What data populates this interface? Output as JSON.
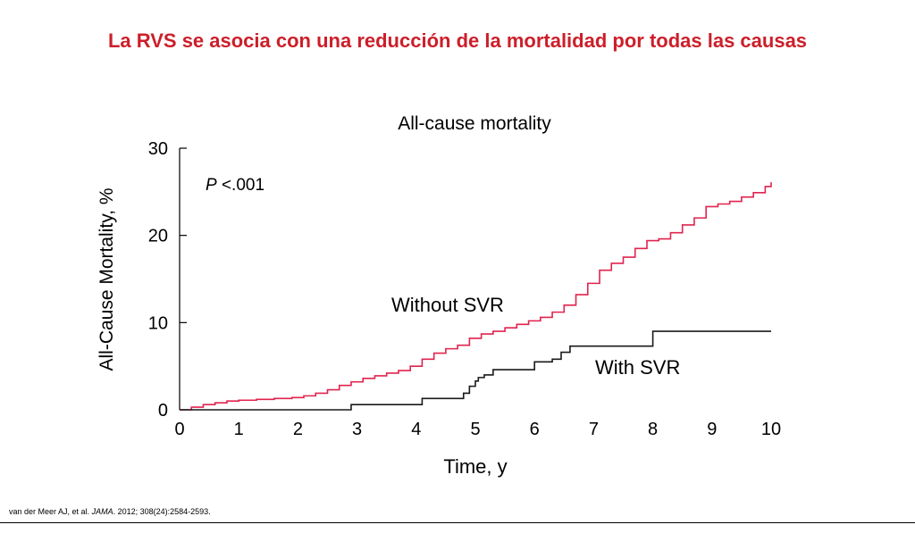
{
  "slide": {
    "title": "La RVS se asocia con una reducción de la mortalidad por todas las causas"
  },
  "citation": {
    "authors": "van der Meer AJ, et al.",
    "journal": "JAMA",
    "details": ". 2012; 308(24):2584-2593."
  },
  "chart_data": {
    "type": "line",
    "title": "All-cause mortality",
    "xlabel": "Time, y",
    "ylabel": "All-Cause Mortality, %",
    "xlim": [
      0,
      10
    ],
    "ylim": [
      0,
      30
    ],
    "xticks": [
      0,
      1,
      2,
      3,
      4,
      5,
      6,
      7,
      8,
      9,
      10
    ],
    "yticks": [
      0,
      10,
      20,
      30
    ],
    "grid": false,
    "step": true,
    "annotations": [
      {
        "text_italic": "P",
        "text": " <.001"
      }
    ],
    "series": [
      {
        "name": "Without SVR",
        "color": "#e0234e",
        "x": [
          0,
          0.2,
          0.4,
          0.6,
          0.8,
          1.0,
          1.3,
          1.6,
          1.9,
          2.1,
          2.3,
          2.5,
          2.7,
          2.9,
          3.1,
          3.3,
          3.5,
          3.7,
          3.9,
          4.1,
          4.3,
          4.5,
          4.7,
          4.9,
          5.1,
          5.3,
          5.5,
          5.7,
          5.9,
          6.1,
          6.3,
          6.5,
          6.7,
          6.9,
          7.1,
          7.3,
          7.5,
          7.7,
          7.9,
          8.1,
          8.3,
          8.5,
          8.7,
          8.9,
          9.1,
          9.3,
          9.5,
          9.7,
          9.9,
          10.0
        ],
        "values": [
          0,
          0.3,
          0.6,
          0.8,
          1.0,
          1.1,
          1.2,
          1.3,
          1.4,
          1.6,
          1.9,
          2.3,
          2.8,
          3.2,
          3.6,
          3.9,
          4.2,
          4.5,
          5.0,
          5.8,
          6.5,
          7.0,
          7.4,
          8.2,
          8.7,
          9.0,
          9.4,
          9.8,
          10.2,
          10.6,
          11.2,
          12.0,
          13.2,
          14.5,
          16.0,
          16.8,
          17.5,
          18.5,
          19.4,
          19.6,
          20.3,
          21.2,
          22.0,
          23.3,
          23.6,
          23.9,
          24.4,
          24.9,
          25.6,
          26.1
        ]
      },
      {
        "name": "With SVR",
        "color": "#1a1a1a",
        "x": [
          0,
          2.9,
          4.1,
          4.8,
          4.9,
          5.0,
          5.05,
          5.15,
          5.3,
          6.0,
          6.3,
          6.45,
          6.6,
          8.0,
          10.0
        ],
        "values": [
          0,
          0.6,
          1.3,
          1.9,
          2.7,
          3.3,
          3.7,
          4.0,
          4.6,
          5.5,
          5.8,
          6.6,
          7.3,
          9.0,
          9.0
        ]
      }
    ]
  }
}
